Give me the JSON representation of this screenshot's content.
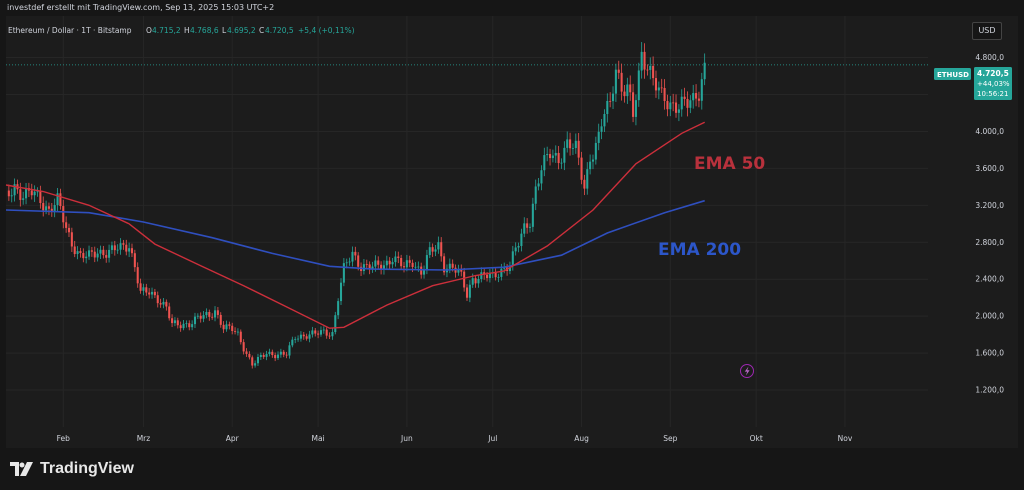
{
  "header": {
    "attribution": "investdef erstellt mit TradingView.com, Sep 13, 2025 15:03 UTC+2"
  },
  "legend": {
    "symbol": "Ethereum / Dollar · 1T · Bitstamp",
    "open_label": "O",
    "open": "4.715,2",
    "high_label": "H",
    "high": "4.768,6",
    "low_label": "L",
    "low": "4.695,2",
    "close_label": "C",
    "close": "4.720,5",
    "change": "+5,4 (+0,11%)"
  },
  "currency_button": "USD",
  "price_tag": {
    "ticker": "ETHUSD",
    "price": "4.720,5",
    "change_pct": "+44,03%",
    "countdown": "10:56:21"
  },
  "annotations": {
    "ema50": "EMA 50",
    "ema200": "EMA 200"
  },
  "footer": {
    "brand": "TradingView"
  },
  "colors": {
    "up": "#26a69a",
    "down": "#ef5350",
    "ema50": "#cc2f3b",
    "ema200": "#2f4fbf",
    "ema50_label": "#b8313c",
    "ema200_label": "#2c56c9",
    "background": "#1c1c1c"
  },
  "chart_data": {
    "type": "candlestick",
    "instrument": "ETHUSD",
    "y_ticks": [
      1200,
      1600,
      2000,
      2400,
      2800,
      3200,
      3600,
      4000,
      4400,
      4800
    ],
    "y_tick_labels": [
      "1.200,0",
      "1.600,0",
      "2.000,0",
      "2.400,0",
      "2.800,0",
      "3.200,0",
      "3.600,0",
      "4.000,0",
      "4.400,0",
      "4.800,0"
    ],
    "x_tick_labels": [
      "Feb",
      "Mrz",
      "Apr",
      "Mai",
      "Jun",
      "Jul",
      "Aug",
      "Sep",
      "Okt",
      "Nov"
    ],
    "x_tick_dates": [
      "2025-02-01",
      "2025-03-01",
      "2025-04-01",
      "2025-05-01",
      "2025-06-01",
      "2025-07-01",
      "2025-08-01",
      "2025-09-01",
      "2025-10-01",
      "2025-11-01"
    ],
    "x_range": [
      "2025-01-12",
      "2025-11-30"
    ],
    "y_range": [
      800,
      5250
    ],
    "last_price": 4720.5,
    "close_series": [
      {
        "date": "2025-01-12",
        "close": 3280
      },
      {
        "date": "2025-01-15",
        "close": 3420
      },
      {
        "date": "2025-01-18",
        "close": 3300
      },
      {
        "date": "2025-01-21",
        "close": 3330
      },
      {
        "date": "2025-01-24",
        "close": 3270
      },
      {
        "date": "2025-01-27",
        "close": 3150
      },
      {
        "date": "2025-01-30",
        "close": 3240
      },
      {
        "date": "2025-02-02",
        "close": 2950
      },
      {
        "date": "2025-02-04",
        "close": 2800
      },
      {
        "date": "2025-02-07",
        "close": 2650
      },
      {
        "date": "2025-02-10",
        "close": 2640
      },
      {
        "date": "2025-02-13",
        "close": 2700
      },
      {
        "date": "2025-02-17",
        "close": 2700
      },
      {
        "date": "2025-02-21",
        "close": 2730
      },
      {
        "date": "2025-02-24",
        "close": 2780
      },
      {
        "date": "2025-02-26",
        "close": 2550
      },
      {
        "date": "2025-02-28",
        "close": 2250
      },
      {
        "date": "2025-03-03",
        "close": 2250
      },
      {
        "date": "2025-03-06",
        "close": 2200
      },
      {
        "date": "2025-03-09",
        "close": 2100
      },
      {
        "date": "2025-03-11",
        "close": 1900
      },
      {
        "date": "2025-03-14",
        "close": 1900
      },
      {
        "date": "2025-03-17",
        "close": 1930
      },
      {
        "date": "2025-03-20",
        "close": 1980
      },
      {
        "date": "2025-03-24",
        "close": 2000
      },
      {
        "date": "2025-03-26",
        "close": 2070
      },
      {
        "date": "2025-03-29",
        "close": 1880
      },
      {
        "date": "2025-04-01",
        "close": 1850
      },
      {
        "date": "2025-04-03",
        "close": 1800
      },
      {
        "date": "2025-04-06",
        "close": 1600
      },
      {
        "date": "2025-04-08",
        "close": 1480
      },
      {
        "date": "2025-04-10",
        "close": 1520
      },
      {
        "date": "2025-04-13",
        "close": 1600
      },
      {
        "date": "2025-04-17",
        "close": 1590
      },
      {
        "date": "2025-04-20",
        "close": 1580
      },
      {
        "date": "2025-04-23",
        "close": 1780
      },
      {
        "date": "2025-04-27",
        "close": 1800
      },
      {
        "date": "2025-04-30",
        "close": 1800
      },
      {
        "date": "2025-05-03",
        "close": 1830
      },
      {
        "date": "2025-05-06",
        "close": 1820
      },
      {
        "date": "2025-05-08",
        "close": 2200
      },
      {
        "date": "2025-05-10",
        "close": 2500
      },
      {
        "date": "2025-05-13",
        "close": 2680
      },
      {
        "date": "2025-05-16",
        "close": 2550
      },
      {
        "date": "2025-05-20",
        "close": 2520
      },
      {
        "date": "2025-05-24",
        "close": 2560
      },
      {
        "date": "2025-05-27",
        "close": 2640
      },
      {
        "date": "2025-05-31",
        "close": 2520
      },
      {
        "date": "2025-06-03",
        "close": 2600
      },
      {
        "date": "2025-06-06",
        "close": 2480
      },
      {
        "date": "2025-06-09",
        "close": 2680
      },
      {
        "date": "2025-06-12",
        "close": 2760
      },
      {
        "date": "2025-06-14",
        "close": 2550
      },
      {
        "date": "2025-06-17",
        "close": 2530
      },
      {
        "date": "2025-06-20",
        "close": 2420
      },
      {
        "date": "2025-06-22",
        "close": 2230
      },
      {
        "date": "2025-06-24",
        "close": 2420
      },
      {
        "date": "2025-06-28",
        "close": 2430
      },
      {
        "date": "2025-07-01",
        "close": 2420
      },
      {
        "date": "2025-07-04",
        "close": 2510
      },
      {
        "date": "2025-07-07",
        "close": 2560
      },
      {
        "date": "2025-07-10",
        "close": 2780
      },
      {
        "date": "2025-07-12",
        "close": 2960
      },
      {
        "date": "2025-07-14",
        "close": 3050
      },
      {
        "date": "2025-07-16",
        "close": 3380
      },
      {
        "date": "2025-07-18",
        "close": 3580
      },
      {
        "date": "2025-07-21",
        "close": 3760
      },
      {
        "date": "2025-07-24",
        "close": 3720
      },
      {
        "date": "2025-07-27",
        "close": 3850
      },
      {
        "date": "2025-07-30",
        "close": 3800
      },
      {
        "date": "2025-08-02",
        "close": 3420
      },
      {
        "date": "2025-08-04",
        "close": 3720
      },
      {
        "date": "2025-08-07",
        "close": 3900
      },
      {
        "date": "2025-08-09",
        "close": 4200
      },
      {
        "date": "2025-08-11",
        "close": 4300
      },
      {
        "date": "2025-08-13",
        "close": 4750
      },
      {
        "date": "2025-08-15",
        "close": 4450
      },
      {
        "date": "2025-08-17",
        "close": 4450
      },
      {
        "date": "2025-08-19",
        "close": 4150
      },
      {
        "date": "2025-08-22",
        "close": 4850
      },
      {
        "date": "2025-08-24",
        "close": 4750
      },
      {
        "date": "2025-08-26",
        "close": 4550
      },
      {
        "date": "2025-08-29",
        "close": 4350
      },
      {
        "date": "2025-09-01",
        "close": 4310
      },
      {
        "date": "2025-09-04",
        "close": 4300
      },
      {
        "date": "2025-09-07",
        "close": 4280
      },
      {
        "date": "2025-09-09",
        "close": 4320
      },
      {
        "date": "2025-09-11",
        "close": 4450
      },
      {
        "date": "2025-09-13",
        "close": 4720
      }
    ],
    "series": [
      {
        "name": "EMA 50",
        "points": [
          {
            "date": "2025-01-12",
            "value": 3420
          },
          {
            "date": "2025-01-25",
            "value": 3350
          },
          {
            "date": "2025-02-10",
            "value": 3200
          },
          {
            "date": "2025-02-24",
            "value": 3000
          },
          {
            "date": "2025-03-05",
            "value": 2780
          },
          {
            "date": "2025-03-20",
            "value": 2560
          },
          {
            "date": "2025-04-05",
            "value": 2330
          },
          {
            "date": "2025-04-20",
            "value": 2100
          },
          {
            "date": "2025-05-05",
            "value": 1870
          },
          {
            "date": "2025-05-10",
            "value": 1880
          },
          {
            "date": "2025-05-25",
            "value": 2120
          },
          {
            "date": "2025-06-10",
            "value": 2330
          },
          {
            "date": "2025-06-25",
            "value": 2440
          },
          {
            "date": "2025-07-05",
            "value": 2490
          },
          {
            "date": "2025-07-20",
            "value": 2760
          },
          {
            "date": "2025-08-05",
            "value": 3150
          },
          {
            "date": "2025-08-20",
            "value": 3650
          },
          {
            "date": "2025-09-05",
            "value": 3980
          },
          {
            "date": "2025-09-13",
            "value": 4100
          }
        ]
      },
      {
        "name": "EMA 200",
        "points": [
          {
            "date": "2025-01-12",
            "value": 3150
          },
          {
            "date": "2025-02-10",
            "value": 3120
          },
          {
            "date": "2025-03-01",
            "value": 3020
          },
          {
            "date": "2025-03-25",
            "value": 2850
          },
          {
            "date": "2025-04-15",
            "value": 2680
          },
          {
            "date": "2025-05-05",
            "value": 2540
          },
          {
            "date": "2025-05-20",
            "value": 2510
          },
          {
            "date": "2025-06-15",
            "value": 2500
          },
          {
            "date": "2025-07-05",
            "value": 2530
          },
          {
            "date": "2025-07-25",
            "value": 2660
          },
          {
            "date": "2025-08-10",
            "value": 2900
          },
          {
            "date": "2025-08-30",
            "value": 3120
          },
          {
            "date": "2025-09-13",
            "value": 3250
          }
        ]
      }
    ]
  }
}
